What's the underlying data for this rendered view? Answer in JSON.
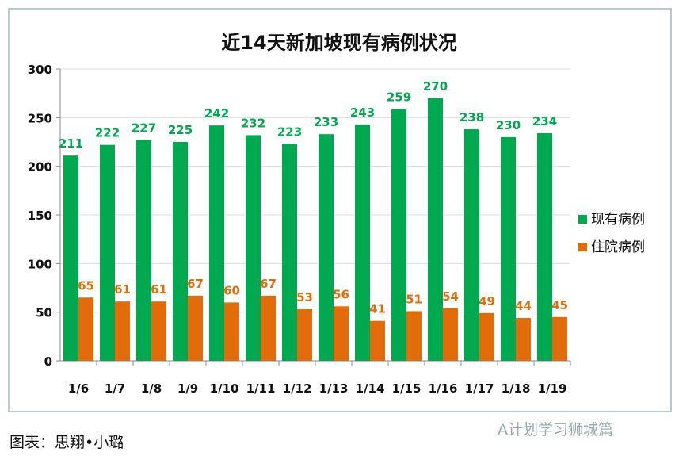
{
  "chart_data": {
    "type": "bar",
    "title": "近14天新加坡现有病例状况",
    "categories": [
      "1/6",
      "1/7",
      "1/8",
      "1/9",
      "1/10",
      "1/11",
      "1/12",
      "1/13",
      "1/14",
      "1/15",
      "1/16",
      "1/17",
      "1/18",
      "1/19"
    ],
    "series": [
      {
        "name": "现有病例",
        "color": "#00a94f",
        "values": [
          211,
          222,
          227,
          225,
          242,
          232,
          223,
          233,
          243,
          259,
          270,
          238,
          230,
          234
        ]
      },
      {
        "name": "住院病例",
        "color": "#e36c0a",
        "values": [
          65,
          61,
          61,
          67,
          60,
          67,
          53,
          56,
          41,
          51,
          54,
          49,
          44,
          45
        ]
      }
    ],
    "ylim": [
      0,
      300
    ],
    "yticks": [
      "0",
      "50",
      "100",
      "150",
      "200",
      "250",
      "300"
    ],
    "grid": true,
    "legend": "right"
  },
  "caption": "图表：思翔•小璐",
  "watermark": "A计划学习狮城篇"
}
